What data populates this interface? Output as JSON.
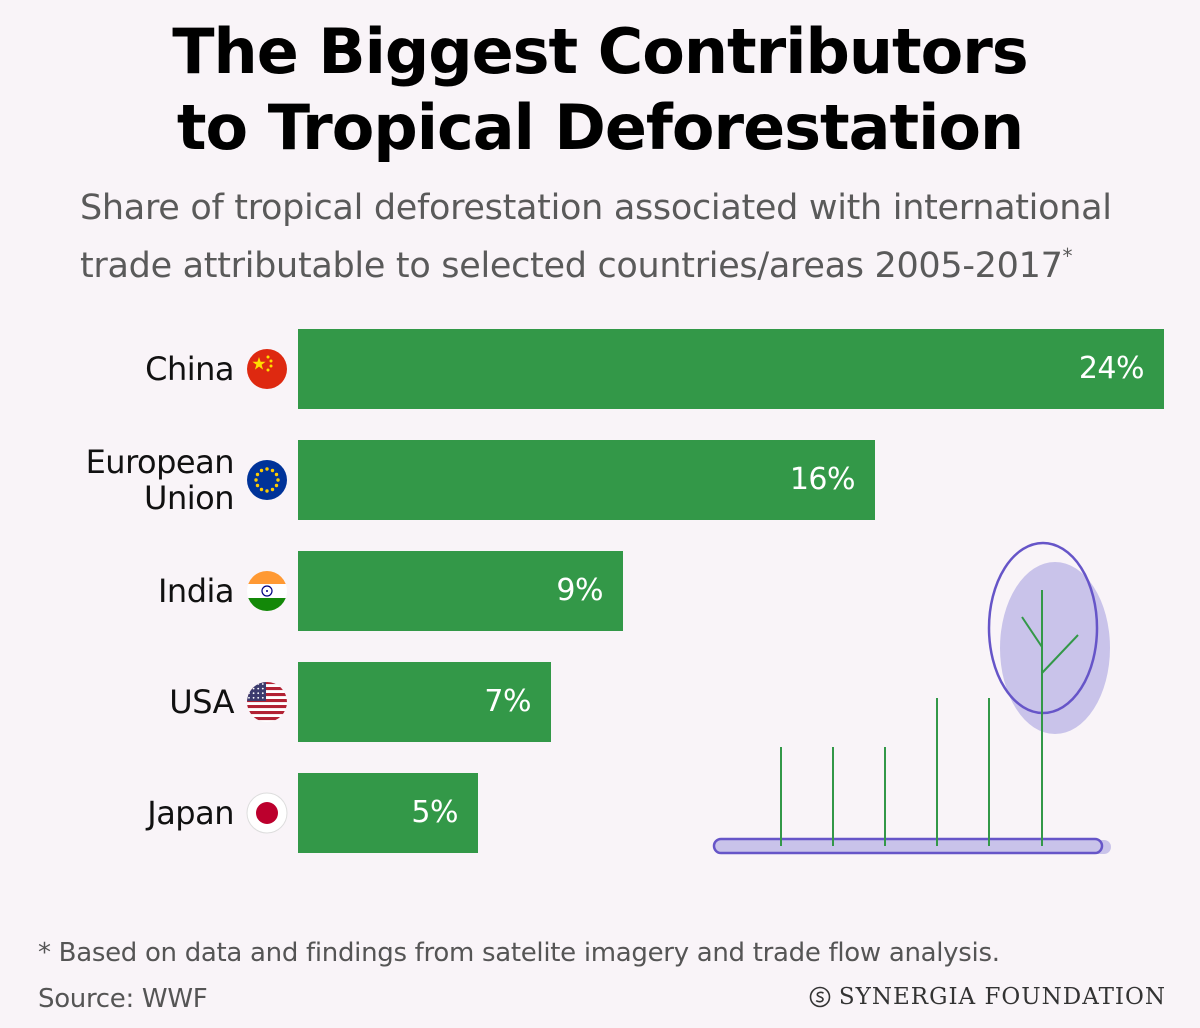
{
  "title": {
    "line1": "The Biggest Contributors",
    "line2": "to Tropical Deforestation"
  },
  "subtitle": {
    "line1": "Share of tropical deforestation associated with international",
    "line2": "trade attributable to selected countries/areas 2005-2017",
    "marker": "*"
  },
  "chart_data": {
    "type": "bar",
    "orientation": "horizontal",
    "categories": [
      "China",
      "European Union",
      "India",
      "USA",
      "Japan"
    ],
    "category_lines": [
      [
        "China"
      ],
      [
        "European",
        "Union"
      ],
      [
        "India"
      ],
      [
        "USA"
      ],
      [
        "Japan"
      ]
    ],
    "values": [
      24,
      16,
      9,
      7,
      5
    ],
    "value_labels": [
      "24%",
      "16%",
      "9%",
      "7%",
      "5%"
    ],
    "flags": [
      "china-flag",
      "eu-flag",
      "india-flag",
      "usa-flag",
      "japan-flag"
    ],
    "xlim": [
      0,
      24
    ],
    "bar_color": "#339848",
    "grid": false
  },
  "footnote": "* Based on data and findings from satelite imagery and trade flow analysis.",
  "source": "Source: WWF",
  "brand": "SYNERGIA FOUNDATION",
  "colors": {
    "background": "#f9f4f8",
    "bar": "#339848",
    "tree_fill": "#c9c3ea",
    "tree_outline": "#6655c8"
  }
}
